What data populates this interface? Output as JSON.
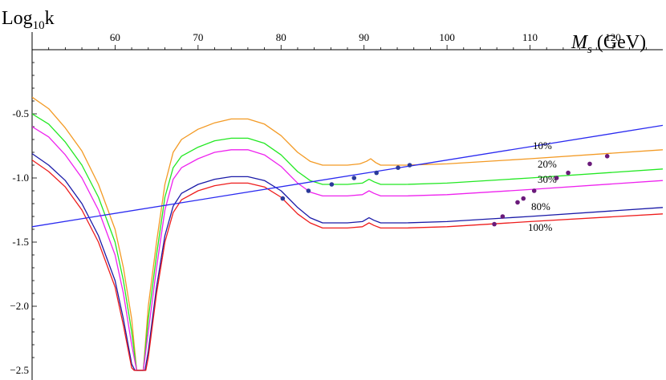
{
  "chart_data": {
    "type": "line",
    "ylabel_base": "Log",
    "ylabel_sub": "10",
    "ylabel_tail": "k",
    "xlabel_var": "M",
    "xlabel_sub": "s",
    "xlabel_unit": " (GeV)",
    "xlim": [
      50,
      126
    ],
    "ylim": [
      -2.5,
      0
    ],
    "x_ticks": [
      60,
      70,
      80,
      90,
      100,
      110,
      120
    ],
    "x_tick_labels": [
      "60",
      "70",
      "80",
      "90",
      "100",
      "110",
      "120"
    ],
    "y_ticks": [
      -0.5,
      -1.0,
      -1.5,
      -2.0,
      -2.5
    ],
    "y_tick_labels": [
      "-0.5",
      "-1.0",
      "-1.5",
      "−2.0",
      "−2.5"
    ],
    "grid": false,
    "series": [
      {
        "label": "10%",
        "color": "#f39a24",
        "points": [
          [
            50,
            -0.37
          ],
          [
            52,
            -0.46
          ],
          [
            54,
            -0.61
          ],
          [
            56,
            -0.79
          ],
          [
            58,
            -1.05
          ],
          [
            60,
            -1.4
          ],
          [
            61,
            -1.7
          ],
          [
            62,
            -2.1
          ],
          [
            62.6,
            -2.5
          ],
          [
            63.4,
            -2.5
          ],
          [
            64,
            -2.0
          ],
          [
            65,
            -1.5
          ],
          [
            66,
            -1.05
          ],
          [
            67,
            -0.8
          ],
          [
            68,
            -0.7
          ],
          [
            70,
            -0.62
          ],
          [
            72,
            -0.57
          ],
          [
            74,
            -0.54
          ],
          [
            76,
            -0.54
          ],
          [
            78,
            -0.58
          ],
          [
            80,
            -0.67
          ],
          [
            82,
            -0.8
          ],
          [
            83.5,
            -0.87
          ],
          [
            85,
            -0.9
          ],
          [
            88,
            -0.9
          ],
          [
            89.5,
            -0.89
          ],
          [
            90.3,
            -0.87
          ],
          [
            90.8,
            -0.85
          ],
          [
            91.4,
            -0.88
          ],
          [
            92,
            -0.9
          ],
          [
            95,
            -0.9
          ],
          [
            100,
            -0.89
          ],
          [
            110,
            -0.85
          ],
          [
            126,
            -0.78
          ]
        ]
      },
      {
        "label": "20%",
        "color": "#22e822",
        "points": [
          [
            50,
            -0.5
          ],
          [
            52,
            -0.58
          ],
          [
            54,
            -0.72
          ],
          [
            56,
            -0.9
          ],
          [
            58,
            -1.15
          ],
          [
            60,
            -1.5
          ],
          [
            61,
            -1.8
          ],
          [
            62,
            -2.2
          ],
          [
            62.6,
            -2.5
          ],
          [
            63.4,
            -2.5
          ],
          [
            64,
            -2.1
          ],
          [
            65,
            -1.6
          ],
          [
            66,
            -1.15
          ],
          [
            67,
            -0.92
          ],
          [
            68,
            -0.83
          ],
          [
            70,
            -0.76
          ],
          [
            72,
            -0.71
          ],
          [
            74,
            -0.69
          ],
          [
            76,
            -0.69
          ],
          [
            78,
            -0.73
          ],
          [
            80,
            -0.82
          ],
          [
            82,
            -0.95
          ],
          [
            83.5,
            -1.02
          ],
          [
            85,
            -1.05
          ],
          [
            88,
            -1.05
          ],
          [
            89.8,
            -1.04
          ],
          [
            90.6,
            -1.01
          ],
          [
            91.2,
            -1.03
          ],
          [
            92,
            -1.05
          ],
          [
            95,
            -1.05
          ],
          [
            100,
            -1.04
          ],
          [
            110,
            -1.0
          ],
          [
            126,
            -0.93
          ]
        ]
      },
      {
        "label": "30%",
        "color": "#ee22ee",
        "points": [
          [
            50,
            -0.6
          ],
          [
            52,
            -0.68
          ],
          [
            54,
            -0.82
          ],
          [
            56,
            -1.0
          ],
          [
            58,
            -1.25
          ],
          [
            60,
            -1.6
          ],
          [
            61,
            -1.9
          ],
          [
            62,
            -2.3
          ],
          [
            62.6,
            -2.5
          ],
          [
            63.4,
            -2.5
          ],
          [
            64,
            -2.2
          ],
          [
            65,
            -1.7
          ],
          [
            66,
            -1.25
          ],
          [
            67,
            -1.01
          ],
          [
            68,
            -0.92
          ],
          [
            70,
            -0.85
          ],
          [
            72,
            -0.8
          ],
          [
            74,
            -0.78
          ],
          [
            76,
            -0.78
          ],
          [
            78,
            -0.82
          ],
          [
            80,
            -0.91
          ],
          [
            82,
            -1.04
          ],
          [
            83.5,
            -1.11
          ],
          [
            85,
            -1.14
          ],
          [
            88,
            -1.14
          ],
          [
            89.8,
            -1.13
          ],
          [
            90.6,
            -1.1
          ],
          [
            91.2,
            -1.12
          ],
          [
            92,
            -1.14
          ],
          [
            95,
            -1.14
          ],
          [
            100,
            -1.13
          ],
          [
            110,
            -1.09
          ],
          [
            126,
            -1.02
          ]
        ]
      },
      {
        "label": "80%",
        "color": "#1a1aa8",
        "points": [
          [
            50,
            -0.81
          ],
          [
            52,
            -0.9
          ],
          [
            54,
            -1.02
          ],
          [
            56,
            -1.2
          ],
          [
            58,
            -1.45
          ],
          [
            60,
            -1.8
          ],
          [
            61,
            -2.1
          ],
          [
            62,
            -2.45
          ],
          [
            62.4,
            -2.5
          ],
          [
            63.6,
            -2.5
          ],
          [
            64,
            -2.35
          ],
          [
            65,
            -1.85
          ],
          [
            66,
            -1.45
          ],
          [
            67,
            -1.22
          ],
          [
            68,
            -1.12
          ],
          [
            70,
            -1.05
          ],
          [
            72,
            -1.01
          ],
          [
            74,
            -0.99
          ],
          [
            76,
            -0.99
          ],
          [
            78,
            -1.02
          ],
          [
            80,
            -1.1
          ],
          [
            82,
            -1.23
          ],
          [
            83.5,
            -1.31
          ],
          [
            85,
            -1.35
          ],
          [
            88,
            -1.35
          ],
          [
            89.8,
            -1.34
          ],
          [
            90.6,
            -1.31
          ],
          [
            91.2,
            -1.33
          ],
          [
            92,
            -1.35
          ],
          [
            95,
            -1.35
          ],
          [
            100,
            -1.34
          ],
          [
            110,
            -1.3
          ],
          [
            126,
            -1.23
          ]
        ]
      },
      {
        "label": "100%",
        "color": "#ee1c1c",
        "points": [
          [
            50,
            -0.86
          ],
          [
            52,
            -0.95
          ],
          [
            54,
            -1.07
          ],
          [
            56,
            -1.25
          ],
          [
            58,
            -1.5
          ],
          [
            60,
            -1.85
          ],
          [
            61,
            -2.15
          ],
          [
            62,
            -2.48
          ],
          [
            62.3,
            -2.5
          ],
          [
            63.7,
            -2.5
          ],
          [
            64,
            -2.4
          ],
          [
            65,
            -1.9
          ],
          [
            66,
            -1.5
          ],
          [
            67,
            -1.27
          ],
          [
            68,
            -1.17
          ],
          [
            70,
            -1.1
          ],
          [
            72,
            -1.06
          ],
          [
            74,
            -1.04
          ],
          [
            76,
            -1.04
          ],
          [
            78,
            -1.07
          ],
          [
            80,
            -1.15
          ],
          [
            82,
            -1.28
          ],
          [
            83.5,
            -1.35
          ],
          [
            85,
            -1.39
          ],
          [
            88,
            -1.39
          ],
          [
            89.8,
            -1.38
          ],
          [
            90.6,
            -1.35
          ],
          [
            91.2,
            -1.37
          ],
          [
            92,
            -1.39
          ],
          [
            95,
            -1.39
          ],
          [
            100,
            -1.38
          ],
          [
            110,
            -1.34
          ],
          [
            126,
            -1.28
          ]
        ]
      },
      {
        "label": "",
        "color": "#2a2af0",
        "points": [
          [
            50,
            -1.38
          ],
          [
            126,
            -0.59
          ]
        ]
      }
    ],
    "points_navy": {
      "color": "#2a3a9a",
      "points": [
        [
          80.2,
          -1.16
        ],
        [
          83.3,
          -1.1
        ],
        [
          86.1,
          -1.05
        ],
        [
          88.8,
          -1.0
        ],
        [
          91.5,
          -0.96
        ],
        [
          94.1,
          -0.92
        ],
        [
          95.5,
          -0.9
        ]
      ]
    },
    "points_purple": {
      "color": "#6a1a7a",
      "points": [
        [
          105.7,
          -1.36
        ],
        [
          106.7,
          -1.3
        ],
        [
          108.5,
          -1.19
        ],
        [
          109.2,
          -1.16
        ],
        [
          110.5,
          -1.1
        ],
        [
          113.2,
          -1.0
        ],
        [
          114.6,
          -0.96
        ],
        [
          117.2,
          -0.89
        ],
        [
          119.3,
          -0.83
        ]
      ]
    }
  }
}
